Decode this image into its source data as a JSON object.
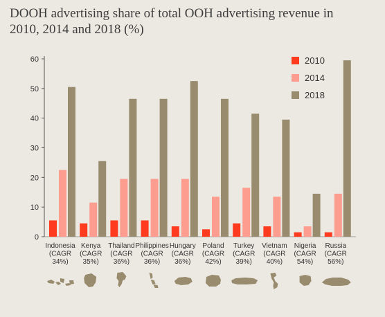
{
  "title_lines": [
    "DOOH advertising share of total OOH advertising revenue in",
    "2010, 2014 and 2018 (%)"
  ],
  "colors": {
    "2010": "#ff3b1f",
    "2014": "#fc9d8f",
    "2018": "#998b6e",
    "map": "#998b6e",
    "axis": "#555555",
    "background": "#ece9e2"
  },
  "chart_data": {
    "type": "bar",
    "title": "DOOH advertising share of total OOH advertising revenue in 2010, 2014 and 2018 (%)",
    "categories": [
      "Indonesia",
      "Kenya",
      "Thailand",
      "Philippines",
      "Hungary",
      "Poland",
      "Turkey",
      "Vietnam",
      "Nigeria",
      "Russia"
    ],
    "category_labels": [
      [
        "Indonesia",
        "(CAGR",
        "34%)"
      ],
      [
        "Kenya",
        "(CAGR",
        "35%)"
      ],
      [
        "Thailand",
        "(CAGR",
        "36%)"
      ],
      [
        "Philippines",
        "(CAGR",
        "36%)"
      ],
      [
        "Hungary",
        "(CAGR",
        "36%)"
      ],
      [
        "Poland",
        "(CAGR",
        "42%)"
      ],
      [
        "Turkey",
        "(CAGR",
        "39%)"
      ],
      [
        "Vietnam",
        "(CAGR",
        "40%)"
      ],
      [
        "Nigeria",
        "(CAGR",
        "54%)"
      ],
      [
        "Russia",
        "(CAGR",
        "56%)"
      ]
    ],
    "series": [
      {
        "name": "2010",
        "values": [
          5.5,
          4.5,
          5.5,
          5.5,
          3.5,
          2.5,
          4.5,
          3.5,
          1.5,
          1.5
        ]
      },
      {
        "name": "2014",
        "values": [
          22.5,
          11.5,
          19.5,
          19.5,
          19.5,
          13.5,
          16.5,
          13.5,
          3.5,
          14.5
        ]
      },
      {
        "name": "2018",
        "values": [
          50.5,
          25.5,
          46.5,
          46.5,
          52.5,
          46.5,
          41.5,
          39.5,
          14.5,
          59.5
        ]
      }
    ],
    "yticks": [
      0,
      10,
      20,
      30,
      40,
      50,
      60
    ],
    "ylim": [
      0,
      60
    ],
    "legend_position": "top-right",
    "grid": false,
    "xlabel": "",
    "ylabel": ""
  },
  "maps": [
    {
      "country": "Indonesia",
      "icon": "indonesia-map-icon"
    },
    {
      "country": "Kenya",
      "icon": "kenya-map-icon"
    },
    {
      "country": "Thailand",
      "icon": "thailand-map-icon"
    },
    {
      "country": "Philippines",
      "icon": "philippines-map-icon"
    },
    {
      "country": "Hungary",
      "icon": "hungary-map-icon"
    },
    {
      "country": "Poland",
      "icon": "poland-map-icon"
    },
    {
      "country": "Turkey",
      "icon": "turkey-map-icon"
    },
    {
      "country": "Vietnam",
      "icon": "vietnam-map-icon"
    },
    {
      "country": "Nigeria",
      "icon": "nigeria-map-icon"
    },
    {
      "country": "Russia",
      "icon": "russia-map-icon"
    }
  ]
}
